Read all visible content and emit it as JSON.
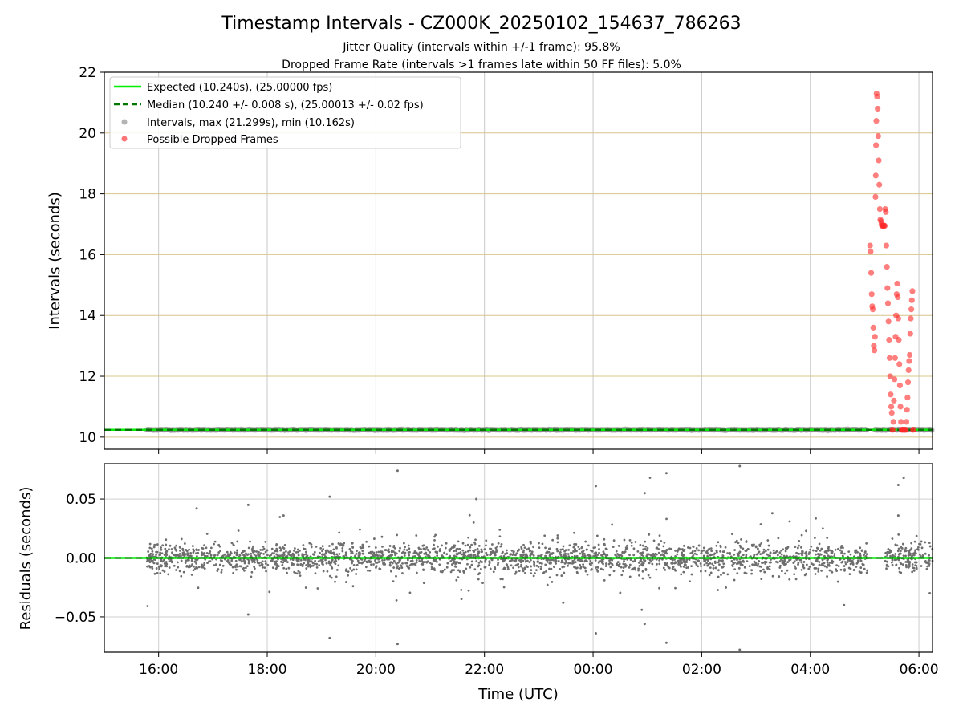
{
  "chart_data": [
    {
      "type": "scatter",
      "title": "Timestamp Intervals - CZ000K_20250102_154637_786263",
      "subtitle_lines": [
        "Jitter Quality (intervals within +/-1 frame): 95.8%",
        "Dropped Frame Rate (intervals >1 frames late within 50 FF files): 5.0%"
      ],
      "ylabel": "Intervals (seconds)",
      "xlim_hours": [
        15.0,
        30.25
      ],
      "ylim": [
        9.6,
        22
      ],
      "yticks": [
        10,
        12,
        14,
        16,
        18,
        20,
        22
      ],
      "grid": true,
      "legend_position": "top-left",
      "legend": [
        "Expected (10.240s), (25.00000 fps)",
        "Median (10.240 +/- 0.008 s), (25.00013 +/- 0.02 fps)",
        "Intervals, max (21.299s), min (10.162s)",
        "Possible Dropped Frames"
      ],
      "expected_value": 10.24,
      "median_value": 10.24,
      "intervals_baseline": {
        "x_start": 15.78,
        "x_end": 30.25,
        "value": 10.24,
        "gap": [
          29.05,
          29.18
        ]
      },
      "dropped_frames": {
        "x": [
          29.1,
          29.11,
          29.12,
          29.13,
          29.14,
          29.15,
          29.16,
          29.17,
          29.18,
          29.19,
          29.2,
          29.205,
          29.21,
          29.215,
          29.22,
          29.23,
          29.24,
          29.25,
          29.26,
          29.27,
          29.28,
          29.29,
          29.3,
          29.31,
          29.32,
          29.33,
          29.34,
          29.35,
          29.36,
          29.37,
          29.38,
          29.39,
          29.4,
          29.41,
          29.42,
          29.43,
          29.44,
          29.45,
          29.46,
          29.47,
          29.48,
          29.49,
          29.5,
          29.51,
          29.52,
          29.53,
          29.54,
          29.55,
          29.56,
          29.57,
          29.58,
          29.59,
          29.6,
          29.61,
          29.62,
          29.63,
          29.64,
          29.65,
          29.66,
          29.67,
          29.68,
          29.69,
          29.7,
          29.71,
          29.72,
          29.73,
          29.74,
          29.75,
          29.76,
          29.77,
          29.78,
          29.79,
          29.8,
          29.81,
          29.82,
          29.83,
          29.84,
          29.85,
          29.86,
          29.87,
          29.88,
          29.89,
          29.9
        ],
        "y": [
          16.3,
          16.1,
          15.4,
          14.7,
          14.3,
          14.2,
          13.6,
          13.0,
          12.85,
          13.3,
          17.9,
          18.6,
          19.6,
          20.4,
          21.3,
          21.2,
          20.8,
          19.9,
          19.1,
          18.3,
          17.5,
          17.15,
          17.1,
          17.0,
          16.95,
          16.95,
          16.95,
          16.95,
          16.95,
          16.95,
          17.5,
          17.4,
          16.3,
          15.6,
          14.9,
          14.4,
          13.8,
          13.2,
          12.6,
          12.0,
          11.4,
          11.0,
          10.8,
          10.24,
          10.24,
          10.5,
          11.2,
          11.9,
          12.6,
          13.3,
          14.0,
          14.7,
          15.05,
          14.6,
          13.9,
          13.2,
          12.4,
          11.7,
          11.0,
          10.5,
          10.24,
          10.24,
          10.24,
          10.24,
          10.24,
          10.24,
          10.24,
          10.24,
          10.24,
          10.5,
          10.9,
          11.3,
          11.8,
          12.2,
          12.5,
          12.7,
          13.4,
          13.9,
          14.2,
          14.5,
          14.8,
          10.24,
          10.24
        ]
      }
    },
    {
      "type": "scatter",
      "xlabel": "Time (UTC)",
      "ylabel": "Residuals (seconds)",
      "xlim_hours": [
        15.0,
        30.25
      ],
      "xtick_hours": [
        16,
        18,
        20,
        22,
        24,
        26,
        28,
        30
      ],
      "xtick_labels": [
        "16:00",
        "18:00",
        "20:00",
        "22:00",
        "00:00",
        "02:00",
        "04:00",
        "06:00"
      ],
      "ylim": [
        -0.08,
        0.08
      ],
      "yticks": [
        0.05,
        0.0,
        -0.05
      ],
      "ytick_labels": [
        "0.05",
        "0.00",
        "−0.05"
      ],
      "grid": true,
      "zero_line": 0.0,
      "residuals": {
        "x_start": 15.78,
        "x_end": 30.25,
        "count": 2600,
        "spread_sd": 0.006,
        "gap": [
          29.05,
          29.38
        ],
        "outliers": [
          {
            "x": 20.4,
            "y": 0.074
          },
          {
            "x": 20.4,
            "y": -0.073
          },
          {
            "x": 19.15,
            "y": 0.052
          },
          {
            "x": 19.15,
            "y": -0.068
          },
          {
            "x": 21.85,
            "y": 0.05
          },
          {
            "x": 24.05,
            "y": 0.061
          },
          {
            "x": 24.05,
            "y": -0.064
          },
          {
            "x": 24.95,
            "y": 0.055
          },
          {
            "x": 24.95,
            "y": -0.056
          },
          {
            "x": 25.35,
            "y": 0.072
          },
          {
            "x": 25.35,
            "y": -0.072
          },
          {
            "x": 26.7,
            "y": 0.08
          },
          {
            "x": 26.7,
            "y": -0.078
          },
          {
            "x": 17.65,
            "y": 0.045
          },
          {
            "x": 17.65,
            "y": -0.048
          },
          {
            "x": 16.7,
            "y": 0.042
          },
          {
            "x": 29.62,
            "y": 0.062
          },
          {
            "x": 29.62,
            "y": 0.036
          },
          {
            "x": 29.72,
            "y": 0.068
          },
          {
            "x": 28.62,
            "y": -0.04
          },
          {
            "x": 30.2,
            "y": -0.03
          },
          {
            "x": 23.45,
            "y": -0.038
          },
          {
            "x": 18.3,
            "y": 0.036
          },
          {
            "x": 27.3,
            "y": 0.038
          }
        ]
      }
    }
  ],
  "colors": {
    "expected": "#00ee00",
    "median": "#007700",
    "intervals": "#8c8c8c",
    "dropped": "#ff2a2a",
    "residuals": "#6e6e6e",
    "grid_top": "#d8c48a",
    "grid_vertical": "#c8c8c8",
    "grid_bottom": "#cfcfcf"
  }
}
